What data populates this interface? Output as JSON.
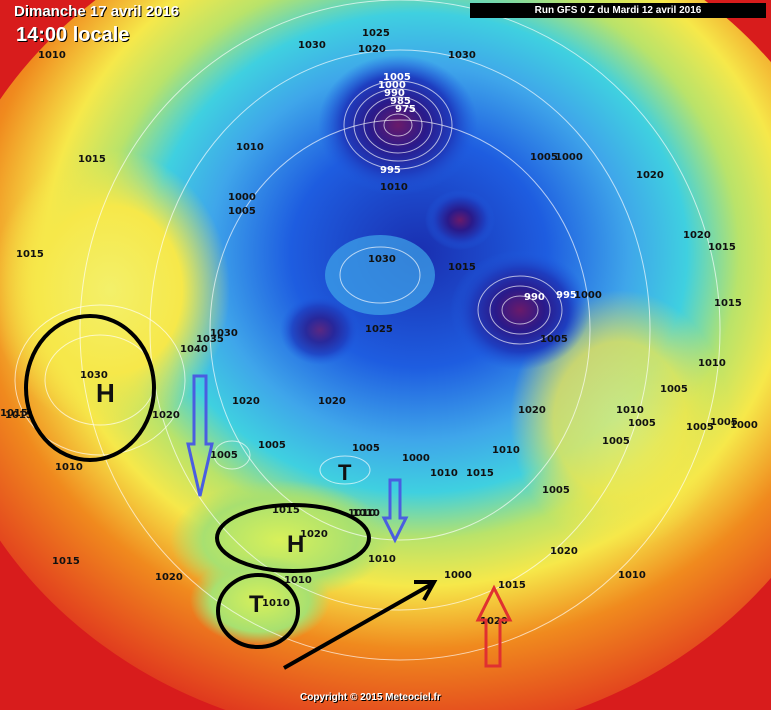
{
  "header": {
    "date_title": "Dimanche 17 avril 2016",
    "time_title": "14:00 locale",
    "run_banner": "Run GFS 0 Z du Mardi 12 avril 2016"
  },
  "footer": {
    "copyright": "Copyright © 2015 Meteociel.fr"
  },
  "colors": {
    "background_red": "#d81c1c",
    "orange": "#f08a1e",
    "yellow": "#f6e84a",
    "green": "#b9e36a",
    "cyan": "#3fd0e0",
    "blue": "#1e5de0",
    "deep_blue": "#1a2fb0",
    "purple": "#7a2a7a",
    "annotation_black": "#000000",
    "arrow_blue": "#4a5ee0",
    "arrow_red": "#e03030"
  },
  "isobars": {
    "top": [
      "1010",
      "1030",
      "1025",
      "1020",
      "1030"
    ],
    "lows_north": [
      "1005",
      "1000",
      "990",
      "985",
      "975",
      "995",
      "1010"
    ],
    "left": [
      "1015",
      "1010",
      "1000",
      "1005",
      "1015",
      "1010",
      "1015"
    ],
    "center": [
      "1030",
      "1025",
      "1015",
      "1030",
      "1035",
      "1040",
      "1020",
      "1020",
      "1005",
      "1005",
      "1000",
      "1005",
      "1010"
    ],
    "right": [
      "1005",
      "1000",
      "1020",
      "990",
      "995",
      "1000",
      "1005",
      "1020",
      "1015",
      "1015",
      "1010",
      "1005",
      "1010",
      "1005",
      "1005",
      "1000",
      "1005",
      "1005"
    ],
    "south": [
      "1010",
      "1015",
      "1020",
      "1010",
      "1005",
      "1000",
      "1015",
      "1015",
      "1010",
      "1020",
      "1020",
      "1015",
      "1010",
      "1020",
      "1010"
    ],
    "high_na": [
      "1030",
      "1020",
      "1010",
      "1015"
    ]
  },
  "annotations": {
    "high_na_letter": "H",
    "high_atlantic_letter": "H",
    "high_atlantic_value": "1020",
    "low_atlantic_letter": "T",
    "low_atlantic_value": "1010",
    "low_north_letter": "T"
  }
}
